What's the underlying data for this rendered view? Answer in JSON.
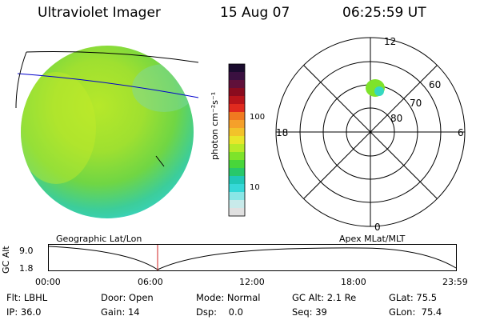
{
  "header": {
    "title": "Ultraviolet Imager",
    "date": "15 Aug 07",
    "time": "06:25:59 UT"
  },
  "colorbar": {
    "label": "photon cm⁻²s⁻¹",
    "ticks": [
      "100",
      "10"
    ],
    "colors": [
      "#1a0b2e",
      "#3a1040",
      "#60103a",
      "#8a0b1e",
      "#b8141a",
      "#e02a1e",
      "#f07a20",
      "#f5a02a",
      "#f2c22a",
      "#e8e62a",
      "#b8ea28",
      "#7ee32a",
      "#48d63a",
      "#28c86a",
      "#20c8b8",
      "#36d8d8",
      "#8ae6e6",
      "#c8eaea",
      "#e0e0e0"
    ]
  },
  "polar": {
    "labels": {
      "top": "12",
      "bottom": "0",
      "left": "18",
      "right": "6"
    },
    "rings": [
      "60",
      "70",
      "80"
    ]
  },
  "orbit": {
    "ylabel": "GC Alt",
    "ymax": "9.0",
    "ymin": "1.8",
    "left_title": "Geographic Lat/Lon",
    "right_title": "Apex MLat/MLT",
    "xticks": [
      "00:00",
      "06:00",
      "12:00",
      "18:00",
      "23:59"
    ]
  },
  "info": {
    "flt": "Flt: LBHL",
    "door": "Door: Open",
    "mode": "Mode: Normal",
    "gcalt": "GC Alt: 2.1 Re",
    "glat": "GLat: 75.5",
    "ip": "IP: 36.0",
    "gain": "Gain: 14",
    "dsp": "Dsp:    0.0",
    "seq": "Seq: 39",
    "glon": "GLon:  75.4"
  }
}
